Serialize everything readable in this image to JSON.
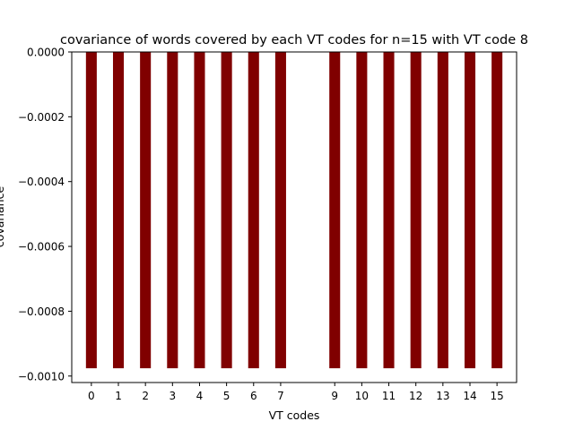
{
  "chart_data": {
    "type": "bar",
    "title": "covariance of words covered by each VT codes for n=15 with VT code 8",
    "xlabel": "VT codes",
    "ylabel": "covariance",
    "x": [
      0,
      1,
      2,
      3,
      4,
      5,
      6,
      7,
      9,
      10,
      11,
      12,
      13,
      14,
      15
    ],
    "values": [
      -0.000976,
      -0.000976,
      -0.000976,
      -0.000976,
      -0.000976,
      -0.000976,
      -0.000976,
      -0.000976,
      -0.000976,
      -0.000976,
      -0.000976,
      -0.000976,
      -0.000976,
      -0.000976,
      -0.000976
    ],
    "xticks": [
      0,
      1,
      2,
      3,
      4,
      5,
      6,
      7,
      9,
      10,
      11,
      12,
      13,
      14,
      15
    ],
    "xtick_labels": [
      "0",
      "1",
      "2",
      "3",
      "4",
      "5",
      "6",
      "7",
      "9",
      "10",
      "11",
      "12",
      "13",
      "14",
      "15"
    ],
    "yticks": [
      0,
      -0.0002,
      -0.0004,
      -0.0006,
      -0.0008,
      -0.001
    ],
    "ytick_labels": [
      "0.0000",
      "−0.0002",
      "−0.0004",
      "−0.0006",
      "−0.0008",
      "−0.0010"
    ],
    "xlim": [
      -0.725,
      15.725
    ],
    "ylim": [
      -0.00102,
      0.0
    ],
    "bar_width": 0.4,
    "bar_color": "#800000",
    "grid": false,
    "legend": "none"
  }
}
